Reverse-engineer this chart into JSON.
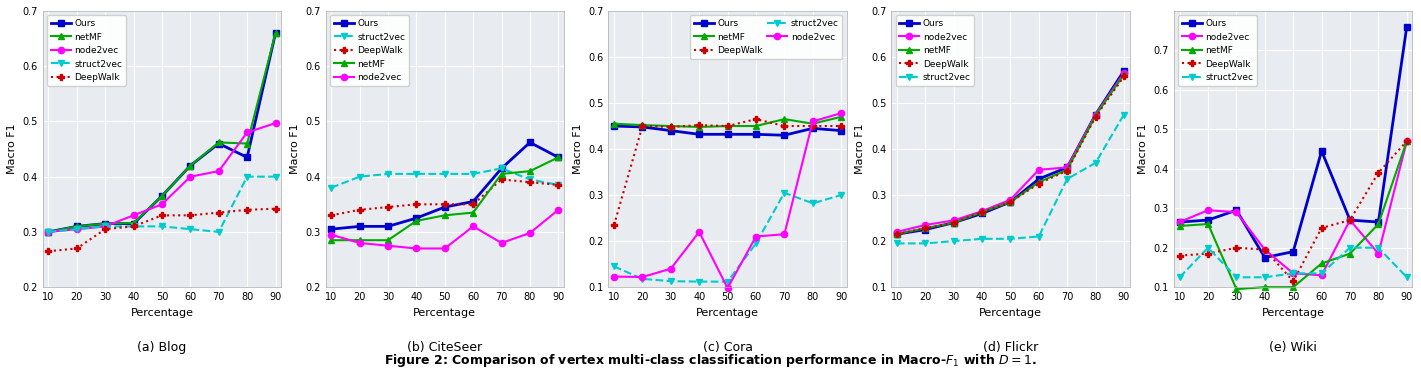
{
  "x": [
    10,
    20,
    30,
    40,
    50,
    60,
    70,
    80,
    90
  ],
  "panels": [
    {
      "title": "(a) Blog",
      "ylim": [
        0.2,
        0.7
      ],
      "yticks": [
        0.2,
        0.3,
        0.4,
        0.5,
        0.6,
        0.7
      ],
      "legend_order": [
        "Ours",
        "netMF",
        "node2vec",
        "struct2vec",
        "DeepWalk"
      ],
      "legend_cols": 1,
      "legend_loc": "upper left",
      "series": {
        "Ours": {
          "y": [
            0.3,
            0.31,
            0.315,
            0.315,
            0.365,
            0.42,
            0.46,
            0.435,
            0.66
          ],
          "color": "#0000CC",
          "marker": "s",
          "linestyle": "-",
          "linewidth": 2.0
        },
        "netMF": {
          "y": [
            0.3,
            0.31,
            0.315,
            0.316,
            0.365,
            0.42,
            0.462,
            0.46,
            0.66
          ],
          "color": "#00AA00",
          "marker": "^",
          "linestyle": "-",
          "linewidth": 1.5
        },
        "node2vec": {
          "y": [
            0.3,
            0.305,
            0.31,
            0.33,
            0.35,
            0.4,
            0.41,
            0.48,
            0.497
          ],
          "color": "#FF00FF",
          "marker": "o",
          "linestyle": "-",
          "linewidth": 1.5
        },
        "struct2vec": {
          "y": [
            0.3,
            0.305,
            0.31,
            0.31,
            0.31,
            0.305,
            0.3,
            0.4,
            0.4
          ],
          "color": "#00CCCC",
          "marker": "v",
          "linestyle": "--",
          "linewidth": 1.5
        },
        "DeepWalk": {
          "y": [
            0.265,
            0.27,
            0.305,
            0.31,
            0.33,
            0.33,
            0.335,
            0.34,
            0.342
          ],
          "color": "#CC0000",
          "marker": "P",
          "linestyle": ":",
          "linewidth": 1.5
        }
      }
    },
    {
      "title": "(b) CiteSeer",
      "ylim": [
        0.2,
        0.7
      ],
      "yticks": [
        0.2,
        0.3,
        0.4,
        0.5,
        0.6,
        0.7
      ],
      "legend_order": [
        "Ours",
        "struct2vec",
        "DeepWalk",
        "netMF",
        "node2vec"
      ],
      "legend_cols": 1,
      "legend_loc": "upper left",
      "series": {
        "Ours": {
          "y": [
            0.305,
            0.31,
            0.31,
            0.325,
            0.345,
            0.355,
            0.415,
            0.462,
            0.435
          ],
          "color": "#0000CC",
          "marker": "s",
          "linestyle": "-",
          "linewidth": 2.0
        },
        "struct2vec": {
          "y": [
            0.38,
            0.4,
            0.405,
            0.405,
            0.405,
            0.405,
            0.415,
            0.395,
            0.385
          ],
          "color": "#00CCCC",
          "marker": "v",
          "linestyle": "--",
          "linewidth": 1.5
        },
        "DeepWalk": {
          "y": [
            0.33,
            0.34,
            0.345,
            0.35,
            0.35,
            0.35,
            0.395,
            0.39,
            0.385
          ],
          "color": "#CC0000",
          "marker": "P",
          "linestyle": ":",
          "linewidth": 1.5
        },
        "netMF": {
          "y": [
            0.285,
            0.285,
            0.285,
            0.32,
            0.33,
            0.335,
            0.405,
            0.41,
            0.435
          ],
          "color": "#00AA00",
          "marker": "^",
          "linestyle": "-",
          "linewidth": 1.5
        },
        "node2vec": {
          "y": [
            0.295,
            0.28,
            0.275,
            0.27,
            0.27,
            0.31,
            0.28,
            0.298,
            0.34
          ],
          "color": "#FF00FF",
          "marker": "o",
          "linestyle": "-",
          "linewidth": 1.5
        }
      }
    },
    {
      "title": "(c) Cora",
      "ylim": [
        0.1,
        0.7
      ],
      "yticks": [
        0.1,
        0.2,
        0.3,
        0.4,
        0.5,
        0.6,
        0.7
      ],
      "legend_order": [
        "Ours",
        "netMF",
        "DeepWalk",
        "struct2vec",
        "node2vec"
      ],
      "legend_cols": 2,
      "legend_loc": "upper right",
      "series": {
        "Ours": {
          "y": [
            0.45,
            0.448,
            0.44,
            0.432,
            0.432,
            0.432,
            0.43,
            0.445,
            0.44
          ],
          "color": "#0000CC",
          "marker": "s",
          "linestyle": "-",
          "linewidth": 2.0
        },
        "netMF": {
          "y": [
            0.455,
            0.452,
            0.45,
            0.448,
            0.45,
            0.45,
            0.465,
            0.455,
            0.47
          ],
          "color": "#00AA00",
          "marker": "^",
          "linestyle": "-",
          "linewidth": 1.5
        },
        "DeepWalk": {
          "y": [
            0.235,
            0.45,
            0.448,
            0.452,
            0.45,
            0.465,
            0.45,
            0.45,
            0.45
          ],
          "color": "#CC0000",
          "marker": "P",
          "linestyle": ":",
          "linewidth": 1.5
        },
        "struct2vec": {
          "y": [
            0.145,
            0.118,
            0.113,
            0.112,
            0.112,
            0.195,
            0.305,
            0.282,
            0.3
          ],
          "color": "#00CCCC",
          "marker": "v",
          "linestyle": "--",
          "linewidth": 1.5
        },
        "node2vec": {
          "y": [
            0.123,
            0.122,
            0.14,
            0.22,
            0.098,
            0.21,
            0.215,
            0.46,
            0.478
          ],
          "color": "#FF00FF",
          "marker": "o",
          "linestyle": "-",
          "linewidth": 1.5
        }
      }
    },
    {
      "title": "(d) Flickr",
      "ylim": [
        0.1,
        0.7
      ],
      "yticks": [
        0.1,
        0.2,
        0.3,
        0.4,
        0.5,
        0.6,
        0.7
      ],
      "legend_order": [
        "Ours",
        "node2vec",
        "netMF",
        "DeepWalk",
        "struct2vec"
      ],
      "legend_cols": 1,
      "legend_loc": "upper left",
      "series": {
        "Ours": {
          "y": [
            0.215,
            0.225,
            0.24,
            0.26,
            0.285,
            0.335,
            0.36,
            0.475,
            0.57
          ],
          "color": "#0000CC",
          "marker": "s",
          "linestyle": "-",
          "linewidth": 2.0
        },
        "node2vec": {
          "y": [
            0.22,
            0.235,
            0.245,
            0.265,
            0.29,
            0.355,
            0.36,
            0.475,
            0.565
          ],
          "color": "#FF00FF",
          "marker": "o",
          "linestyle": "-",
          "linewidth": 1.5
        },
        "netMF": {
          "y": [
            0.215,
            0.228,
            0.24,
            0.263,
            0.285,
            0.328,
            0.355,
            0.473,
            0.562
          ],
          "color": "#00AA00",
          "marker": "^",
          "linestyle": "-",
          "linewidth": 1.5
        },
        "DeepWalk": {
          "y": [
            0.215,
            0.228,
            0.24,
            0.263,
            0.285,
            0.325,
            0.353,
            0.47,
            0.558
          ],
          "color": "#CC0000",
          "marker": "P",
          "linestyle": ":",
          "linewidth": 1.5
        },
        "struct2vec": {
          "y": [
            0.195,
            0.195,
            0.2,
            0.205,
            0.205,
            0.21,
            0.335,
            0.37,
            0.475
          ],
          "color": "#00CCCC",
          "marker": "v",
          "linestyle": "--",
          "linewidth": 1.5
        }
      }
    },
    {
      "title": "(e) Wiki",
      "ylim": [
        0.1,
        0.8
      ],
      "yticks": [
        0.1,
        0.2,
        0.3,
        0.4,
        0.5,
        0.6,
        0.7
      ],
      "legend_order": [
        "Ours",
        "node2vec",
        "netMF",
        "DeepWalk",
        "struct2vec"
      ],
      "legend_cols": 1,
      "legend_loc": "upper left",
      "series": {
        "Ours": {
          "y": [
            0.265,
            0.27,
            0.295,
            0.175,
            0.19,
            0.445,
            0.27,
            0.265,
            0.76
          ],
          "color": "#0000CC",
          "marker": "s",
          "linestyle": "-",
          "linewidth": 2.0
        },
        "node2vec": {
          "y": [
            0.265,
            0.295,
            0.29,
            0.195,
            0.135,
            0.13,
            0.27,
            0.185,
            0.47
          ],
          "color": "#FF00FF",
          "marker": "o",
          "linestyle": "-",
          "linewidth": 1.5
        },
        "netMF": {
          "y": [
            0.255,
            0.26,
            0.095,
            0.1,
            0.1,
            0.16,
            0.185,
            0.26,
            0.47
          ],
          "color": "#00AA00",
          "marker": "^",
          "linestyle": "-",
          "linewidth": 1.5
        },
        "DeepWalk": {
          "y": [
            0.18,
            0.185,
            0.2,
            0.195,
            0.115,
            0.25,
            0.27,
            0.39,
            0.47
          ],
          "color": "#CC0000",
          "marker": "P",
          "linestyle": ":",
          "linewidth": 1.5
        },
        "struct2vec": {
          "y": [
            0.125,
            0.2,
            0.125,
            0.125,
            0.135,
            0.135,
            0.2,
            0.2,
            0.125
          ],
          "color": "#00CCCC",
          "marker": "v",
          "linestyle": "--",
          "linewidth": 1.5
        }
      }
    }
  ],
  "xlabel": "Percentage",
  "ylabel": "Macro F1",
  "bg_color": "#E8ECF0",
  "grid_color": "white"
}
